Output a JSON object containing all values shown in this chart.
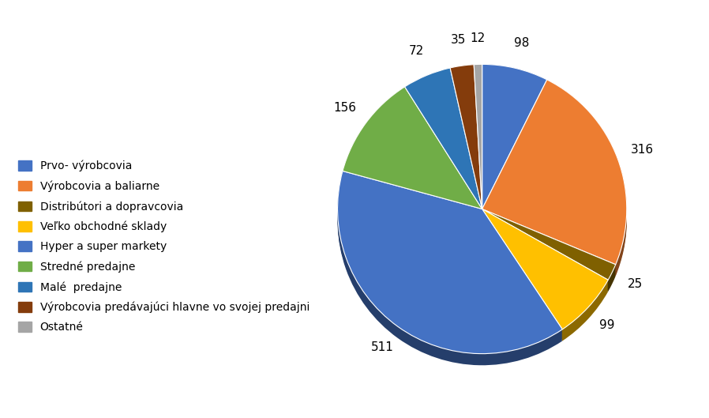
{
  "labels": [
    "Prvo- výrobcovia",
    "Výrobcovia a baliarne",
    "Distribútori a dopravcovia",
    "Veľko obchodné sklady",
    "Hyper a super markety",
    "Stredné predajne",
    "Malé  predajne",
    "Výrobcovia predávajúci hlavne vo svojej predajni",
    "Ostatné"
  ],
  "values": [
    98,
    316,
    25,
    99,
    511,
    156,
    72,
    35,
    12
  ],
  "colors": [
    "#4472C4",
    "#ED7D31",
    "#7F6000",
    "#FFC000",
    "#4472C4",
    "#70AD47",
    "#2E75B6",
    "#843C0C",
    "#A5A5A5"
  ],
  "startangle": 90,
  "background_color": "#FFFFFF",
  "label_fontsize": 11,
  "legend_fontsize": 10
}
